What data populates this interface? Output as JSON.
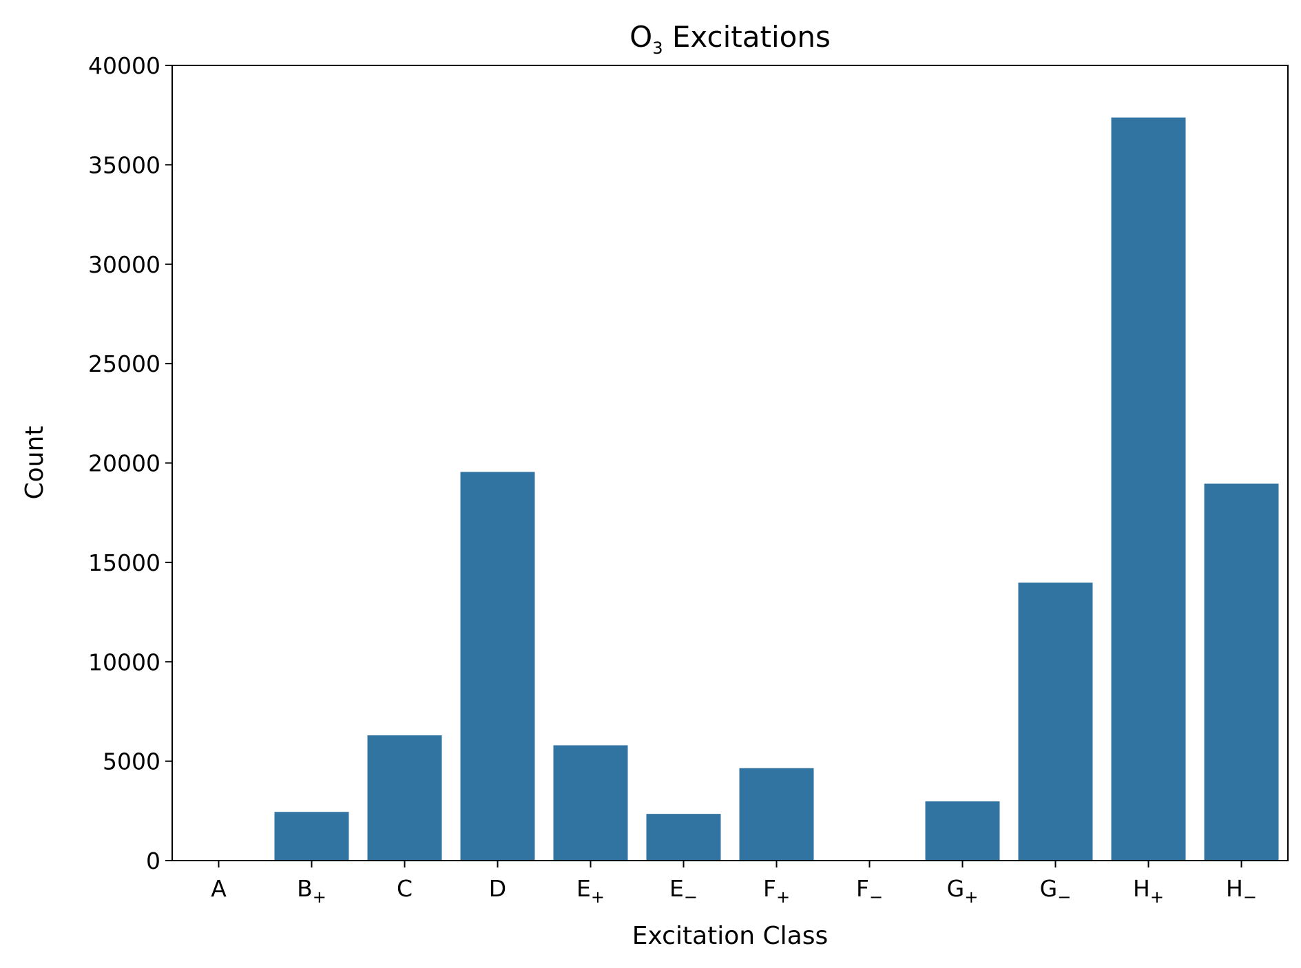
{
  "chart_data": {
    "type": "bar",
    "title": "O",
    "title_sub": "3",
    "title_rest": " Excitations",
    "xlabel": "Excitation Class",
    "ylabel": "Count",
    "ylim": [
      0,
      40000
    ],
    "yticks": [
      "0",
      "5000",
      "10000",
      "15000",
      "20000",
      "25000",
      "30000",
      "35000",
      "40000"
    ],
    "categories": [
      {
        "base": "A",
        "sub": ""
      },
      {
        "base": "B",
        "sub": "+"
      },
      {
        "base": "C",
        "sub": ""
      },
      {
        "base": "D",
        "sub": ""
      },
      {
        "base": "E",
        "sub": "+"
      },
      {
        "base": "E",
        "sub": "−"
      },
      {
        "base": "F",
        "sub": "+"
      },
      {
        "base": "F",
        "sub": "−"
      },
      {
        "base": "G",
        "sub": "+"
      },
      {
        "base": "G",
        "sub": "−"
      },
      {
        "base": "H",
        "sub": "+"
      },
      {
        "base": "H",
        "sub": "−"
      }
    ],
    "values": [
      0,
      2450,
      6300,
      19550,
      5800,
      2350,
      4650,
      0,
      2980,
      13980,
      37380,
      18960
    ],
    "bar_color": "#3274a1",
    "grid": false
  }
}
